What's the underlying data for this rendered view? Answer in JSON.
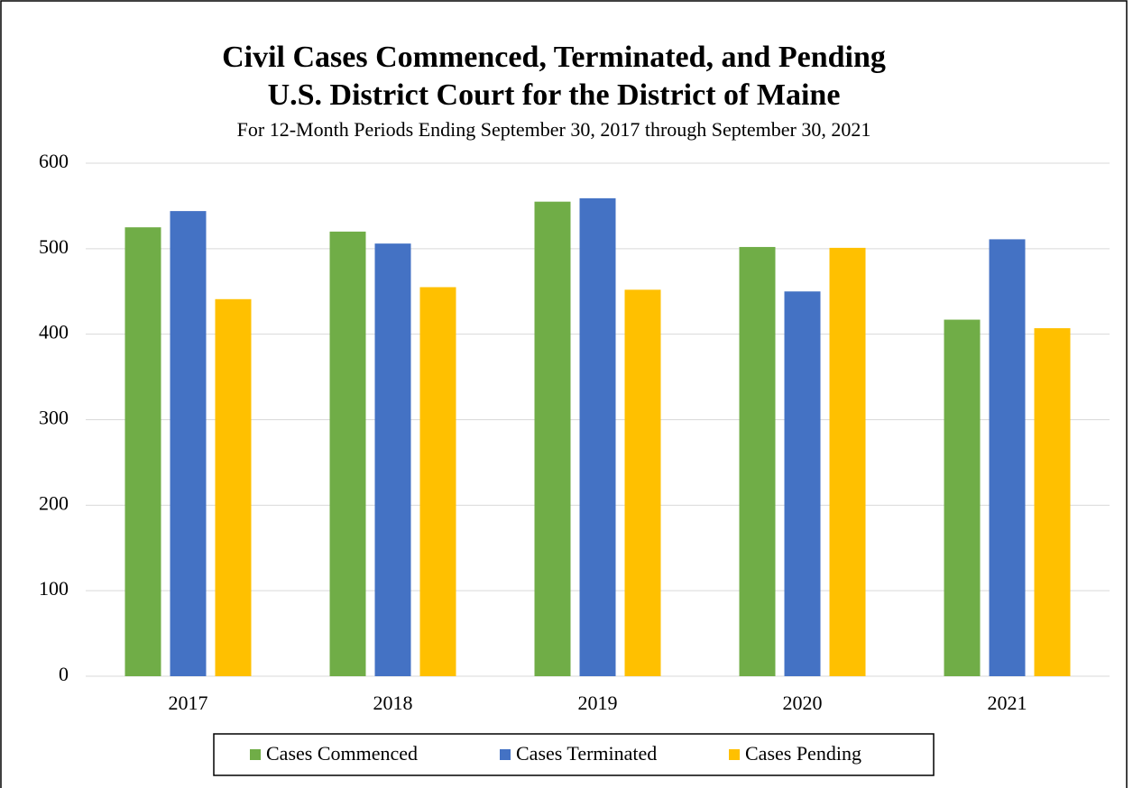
{
  "chart_data": {
    "type": "bar",
    "title": "Civil Cases Commenced, Terminated, and Pending",
    "subtitle": "U.S. District Court for the District of Maine",
    "note": "For 12-Month Periods Ending September 30, 2017 through September 30, 2021",
    "categories": [
      "2017",
      "2018",
      "2019",
      "2020",
      "2021"
    ],
    "series": [
      {
        "name": "Cases Commenced",
        "color": "#70ad47",
        "values": [
          525,
          520,
          555,
          502,
          417
        ]
      },
      {
        "name": "Cases Terminated",
        "color": "#4472c4",
        "values": [
          544,
          506,
          559,
          450,
          511
        ]
      },
      {
        "name": "Cases Pending",
        "color": "#ffc000",
        "values": [
          441,
          455,
          452,
          501,
          407
        ]
      }
    ],
    "ylim": [
      0,
      600
    ],
    "yticks": [
      0,
      100,
      200,
      300,
      400,
      500,
      600
    ],
    "grid": true,
    "legend": "bottom"
  }
}
